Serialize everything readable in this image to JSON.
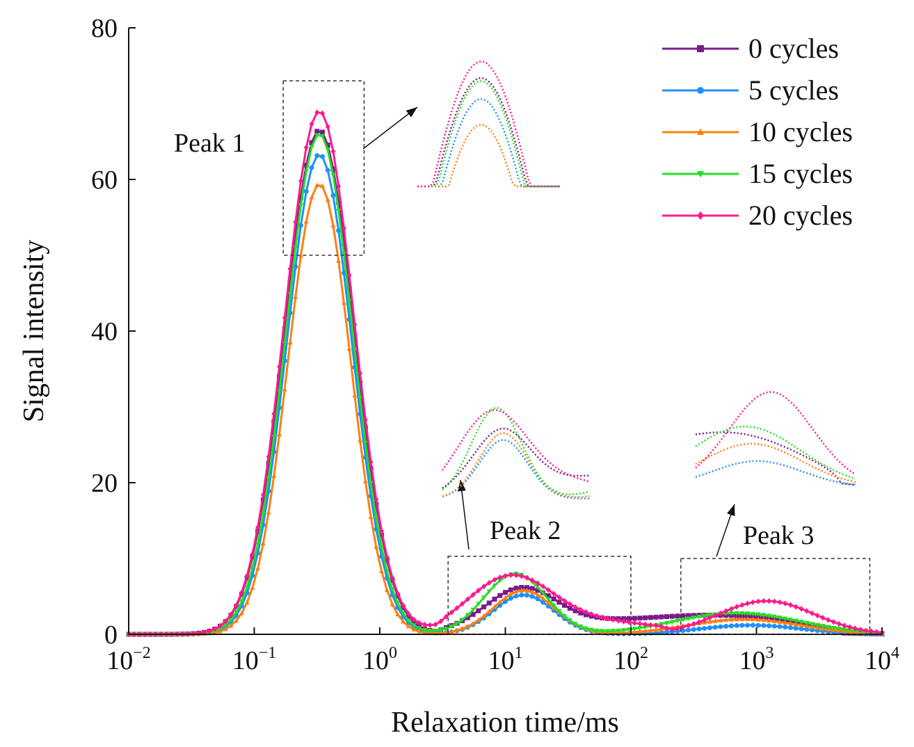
{
  "chart_data": {
    "type": "line",
    "title": "",
    "xlabel": "Relaxation time/ms",
    "ylabel": "Signal intensity",
    "xscale": "log",
    "xlim": [
      0.01,
      10000
    ],
    "ylim": [
      0,
      80
    ],
    "xticks": [
      {
        "value": 0.01,
        "base": "10",
        "exp": "−2"
      },
      {
        "value": 0.1,
        "base": "10",
        "exp": "−1"
      },
      {
        "value": 1,
        "base": "10",
        "exp": "0"
      },
      {
        "value": 10,
        "base": "10",
        "exp": "1"
      },
      {
        "value": 100,
        "base": "10",
        "exp": "2"
      },
      {
        "value": 1000,
        "base": "10",
        "exp": "3"
      },
      {
        "value": 10000,
        "base": "10",
        "exp": "4"
      }
    ],
    "yticks": [
      0,
      20,
      40,
      60,
      80
    ],
    "legend_position": "top-right",
    "series": [
      {
        "name": "0 cycles",
        "color": "#7a1a8c",
        "marker": "square",
        "peak1": {
          "center": 0.33,
          "height": 66.5,
          "width": 0.275
        },
        "peak2": {
          "center": 13.5,
          "height": 4.8,
          "width": 0.27
        },
        "peak3": {
          "center": 600,
          "height": 0.9,
          "width": 0.5
        },
        "tail": {
          "level": 1.8,
          "end": 5000
        }
      },
      {
        "name": "5 cycles",
        "color": "#1e90ff",
        "marker": "circle",
        "peak1": {
          "center": 0.33,
          "height": 63.3,
          "width": 0.26
        },
        "peak2": {
          "center": 14,
          "height": 5.2,
          "width": 0.24
        },
        "peak3": {
          "center": 900,
          "height": 1.2,
          "width": 0.4
        },
        "tail": {
          "level": 0,
          "end": 0
        }
      },
      {
        "name": "10 cycles",
        "color": "#ff7f0e",
        "marker": "triangle-up",
        "peak1": {
          "center": 0.33,
          "height": 59.4,
          "width": 0.25
        },
        "peak2": {
          "center": 14,
          "height": 5.8,
          "width": 0.24
        },
        "peak3": {
          "center": 800,
          "height": 2.0,
          "width": 0.45
        },
        "tail": {
          "level": 0,
          "end": 0
        }
      },
      {
        "name": "15 cycles",
        "color": "#22e022",
        "marker": "triangle-down",
        "peak1": {
          "center": 0.33,
          "height": 66.0,
          "width": 0.265
        },
        "peak2": {
          "center": 12,
          "height": 8.0,
          "width": 0.25
        },
        "peak3": {
          "center": 700,
          "height": 2.8,
          "width": 0.5
        },
        "tail": {
          "level": 0,
          "end": 0
        }
      },
      {
        "name": "20 cycles",
        "color": "#ff1a8c",
        "marker": "diamond",
        "peak1": {
          "center": 0.33,
          "height": 69.0,
          "width": 0.275
        },
        "peak2": {
          "center": 11,
          "height": 6.0,
          "width": 0.32
        },
        "peak3": {
          "center": 1200,
          "height": 4.4,
          "width": 0.38
        },
        "tail": {
          "level": 2.0,
          "end": 200
        }
      }
    ],
    "annotations": [
      {
        "label": "Peak 1",
        "x_range": [
          0.17,
          0.75
        ],
        "y_range": [
          50,
          73
        ]
      },
      {
        "label": "Peak 2",
        "x_range": [
          3.5,
          100
        ],
        "y_range": [
          0,
          10.3
        ]
      },
      {
        "label": "Peak 3",
        "x_range": [
          250,
          8000
        ],
        "y_range": [
          0,
          10
        ]
      }
    ]
  }
}
